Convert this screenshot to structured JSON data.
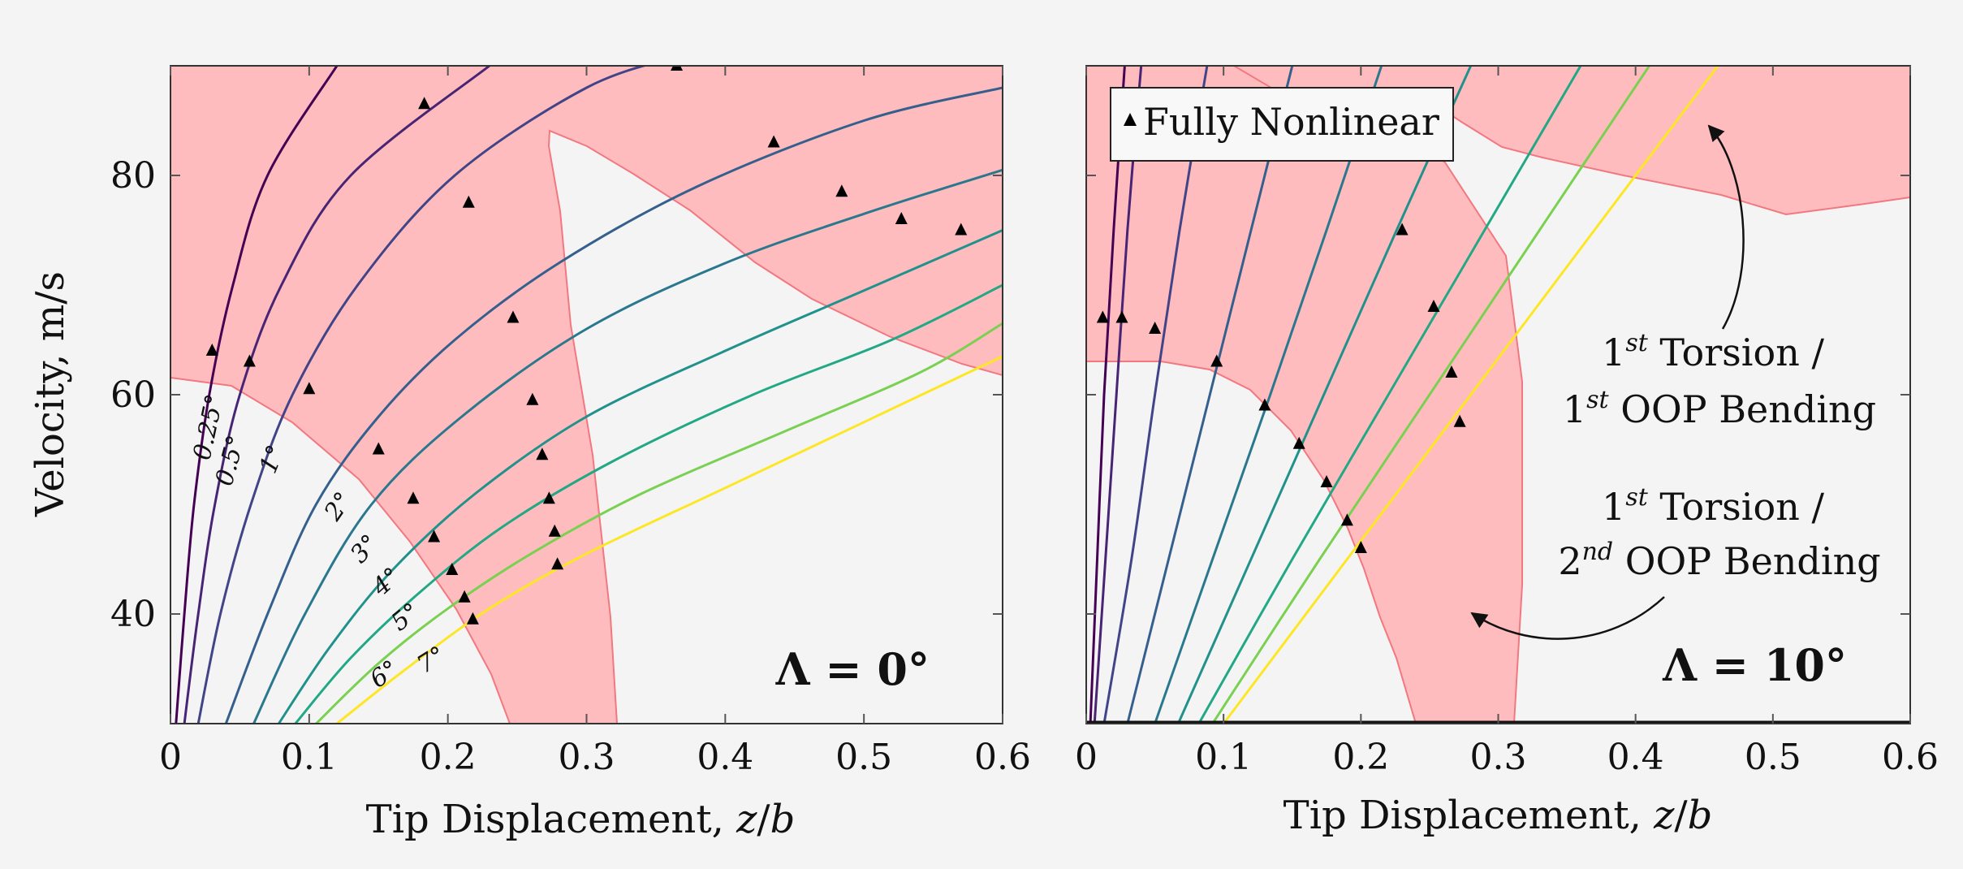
{
  "chart_data": [
    {
      "type": "line",
      "title": "Λ = 0°",
      "xlabel": "Tip Displacement, z/b",
      "ylabel": "Velocity, m/s",
      "xlim": [
        0,
        0.6
      ],
      "ylim": [
        30,
        90
      ],
      "x_ticks": [
        "0",
        "0.1",
        "0.2",
        "0.3",
        "0.4",
        "0.5",
        "0.6"
      ],
      "y_ticks": [
        "40",
        "60",
        "80"
      ],
      "grid": false,
      "series": [
        {
          "name": "0.25°",
          "color": "#440154",
          "points": [
            [
              0.004,
              30
            ],
            [
              0.01,
              40
            ],
            [
              0.017,
              50
            ],
            [
              0.028,
              60
            ],
            [
              0.045,
              70
            ],
            [
              0.07,
              80
            ],
            [
              0.12,
              90
            ]
          ]
        },
        {
          "name": "0.5°",
          "color": "#482475",
          "points": [
            [
              0.01,
              30
            ],
            [
              0.02,
              40
            ],
            [
              0.032,
              50
            ],
            [
              0.05,
              60
            ],
            [
              0.08,
              70
            ],
            [
              0.13,
              80
            ],
            [
              0.23,
              90
            ]
          ]
        },
        {
          "name": "1°",
          "color": "#414487",
          "points": [
            [
              0.02,
              30
            ],
            [
              0.036,
              40
            ],
            [
              0.058,
              50
            ],
            [
              0.088,
              60
            ],
            [
              0.135,
              70
            ],
            [
              0.205,
              80
            ],
            [
              0.3,
              88
            ],
            [
              0.37,
              91
            ]
          ]
        },
        {
          "name": "2°",
          "color": "#355f8d",
          "points": [
            [
              0.04,
              30
            ],
            [
              0.07,
              40
            ],
            [
              0.105,
              50
            ],
            [
              0.15,
              58
            ],
            [
              0.205,
              65
            ],
            [
              0.28,
              72
            ],
            [
              0.38,
              79
            ],
            [
              0.5,
              85
            ],
            [
              0.6,
              88
            ]
          ]
        },
        {
          "name": "3°",
          "color": "#2a788e",
          "points": [
            [
              0.06,
              30
            ],
            [
              0.097,
              40
            ],
            [
              0.145,
              50
            ],
            [
              0.21,
              58
            ],
            [
              0.3,
              66
            ],
            [
              0.4,
              72
            ],
            [
              0.5,
              76.5
            ],
            [
              0.6,
              80.5
            ]
          ]
        },
        {
          "name": "4°",
          "color": "#21918c",
          "points": [
            [
              0.078,
              30
            ],
            [
              0.115,
              37
            ],
            [
              0.16,
              44
            ],
            [
              0.22,
              51
            ],
            [
              0.3,
              58
            ],
            [
              0.4,
              64
            ],
            [
              0.5,
              69.5
            ],
            [
              0.6,
              75
            ]
          ]
        },
        {
          "name": "5°",
          "color": "#22a884",
          "points": [
            [
              0.09,
              30
            ],
            [
              0.13,
              36
            ],
            [
              0.18,
              42
            ],
            [
              0.24,
              48
            ],
            [
              0.32,
              54
            ],
            [
              0.42,
              60
            ],
            [
              0.52,
              65
            ],
            [
              0.6,
              70
            ]
          ]
        },
        {
          "name": "6°",
          "color": "#7ad151",
          "points": [
            [
              0.105,
              30
            ],
            [
              0.15,
              35.5
            ],
            [
              0.2,
              40.5
            ],
            [
              0.26,
              45.5
            ],
            [
              0.34,
              51
            ],
            [
              0.44,
              56.5
            ],
            [
              0.54,
              62
            ],
            [
              0.6,
              66.5
            ]
          ]
        },
        {
          "name": "7°",
          "color": "#fde725",
          "points": [
            [
              0.12,
              30
            ],
            [
              0.17,
              35
            ],
            [
              0.23,
              40.5
            ],
            [
              0.3,
              45.5
            ],
            [
              0.4,
              51.5
            ],
            [
              0.5,
              57.5
            ],
            [
              0.6,
              63.5
            ]
          ]
        }
      ],
      "markers": {
        "name": "Fully Nonlinear",
        "points": [
          [
            0.03,
            64
          ],
          [
            0.057,
            63
          ],
          [
            0.1,
            60.5
          ],
          [
            0.15,
            55
          ],
          [
            0.175,
            50.5
          ],
          [
            0.19,
            47
          ],
          [
            0.203,
            44
          ],
          [
            0.212,
            41.5
          ],
          [
            0.218,
            39.5
          ],
          [
            0.183,
            86.5
          ],
          [
            0.215,
            77.5
          ],
          [
            0.247,
            67
          ],
          [
            0.261,
            59.5
          ],
          [
            0.268,
            54.5
          ],
          [
            0.273,
            50.5
          ],
          [
            0.277,
            47.5
          ],
          [
            0.279,
            44.5
          ],
          [
            0.365,
            90
          ],
          [
            0.435,
            83
          ],
          [
            0.484,
            78.5
          ],
          [
            0.527,
            76
          ],
          [
            0.57,
            75
          ]
        ]
      }
    },
    {
      "type": "line",
      "title": "Λ = 10°",
      "xlabel": "Tip Displacement, z/b",
      "xlim": [
        0,
        0.6
      ],
      "ylim": [
        30,
        90
      ],
      "x_ticks": [
        "0",
        "0.1",
        "0.2",
        "0.3",
        "0.4",
        "0.5",
        "0.6"
      ],
      "grid": false,
      "series": [
        {
          "color": "#440154",
          "points": [
            [
              0.003,
              30
            ],
            [
              0.008,
              45
            ],
            [
              0.013,
              60
            ],
            [
              0.02,
              75
            ],
            [
              0.028,
              90
            ]
          ]
        },
        {
          "color": "#482475",
          "points": [
            [
              0.006,
              30
            ],
            [
              0.014,
              45
            ],
            [
              0.022,
              60
            ],
            [
              0.03,
              75
            ],
            [
              0.04,
              90
            ]
          ]
        },
        {
          "color": "#414487",
          "points": [
            [
              0.013,
              30
            ],
            [
              0.033,
              45
            ],
            [
              0.05,
              60
            ],
            [
              0.068,
              75
            ],
            [
              0.088,
              90
            ]
          ]
        },
        {
          "color": "#355f8d",
          "points": [
            [
              0.03,
              30
            ],
            [
              0.06,
              45
            ],
            [
              0.09,
              60
            ],
            [
              0.12,
              75
            ],
            [
              0.15,
              90
            ]
          ]
        },
        {
          "color": "#2a788e",
          "points": [
            [
              0.05,
              30
            ],
            [
              0.092,
              45
            ],
            [
              0.134,
              60
            ],
            [
              0.175,
              75
            ],
            [
              0.215,
              90
            ]
          ]
        },
        {
          "color": "#21918c",
          "points": [
            [
              0.067,
              30
            ],
            [
              0.12,
              45
            ],
            [
              0.173,
              60
            ],
            [
              0.226,
              75
            ],
            [
              0.28,
              90
            ]
          ]
        },
        {
          "color": "#22a884",
          "points": [
            [
              0.082,
              30
            ],
            [
              0.15,
              45
            ],
            [
              0.22,
              60
            ],
            [
              0.29,
              75
            ],
            [
              0.36,
              90
            ]
          ]
        },
        {
          "color": "#7ad151",
          "points": [
            [
              0.092,
              30
            ],
            [
              0.17,
              45
            ],
            [
              0.25,
              60
            ],
            [
              0.33,
              75
            ],
            [
              0.41,
              90
            ]
          ]
        },
        {
          "color": "#fde725",
          "points": [
            [
              0.1,
              30
            ],
            [
              0.19,
              45
            ],
            [
              0.28,
              60
            ],
            [
              0.37,
              75
            ],
            [
              0.46,
              90
            ]
          ]
        }
      ],
      "markers": {
        "name": "Fully Nonlinear",
        "points": [
          [
            0.012,
            67
          ],
          [
            0.026,
            67
          ],
          [
            0.05,
            66
          ],
          [
            0.095,
            63
          ],
          [
            0.13,
            59
          ],
          [
            0.155,
            55.5
          ],
          [
            0.175,
            52
          ],
          [
            0.19,
            48.5
          ],
          [
            0.2,
            46
          ],
          [
            0.23,
            75
          ],
          [
            0.253,
            68
          ],
          [
            0.266,
            62
          ],
          [
            0.272,
            57.5
          ]
        ]
      },
      "legend": {
        "entries": [
          "Fully Nonlinear"
        ],
        "placement": "top-left"
      },
      "annotations": [
        {
          "line1": "1",
          "sup1": "st",
          "rest1": " Torsion /",
          "line2": "1",
          "sup2": "st",
          "rest2": " OOP Bending"
        },
        {
          "line1": "1",
          "sup1": "st",
          "rest1": " Torsion /",
          "line2": "2",
          "sup2": "nd",
          "rest2": " OOP Bending"
        }
      ]
    }
  ],
  "colors": {
    "unstable_region": "#ffbcbe",
    "unstable_edge": "#f27880",
    "background": "#f4f4f5"
  }
}
